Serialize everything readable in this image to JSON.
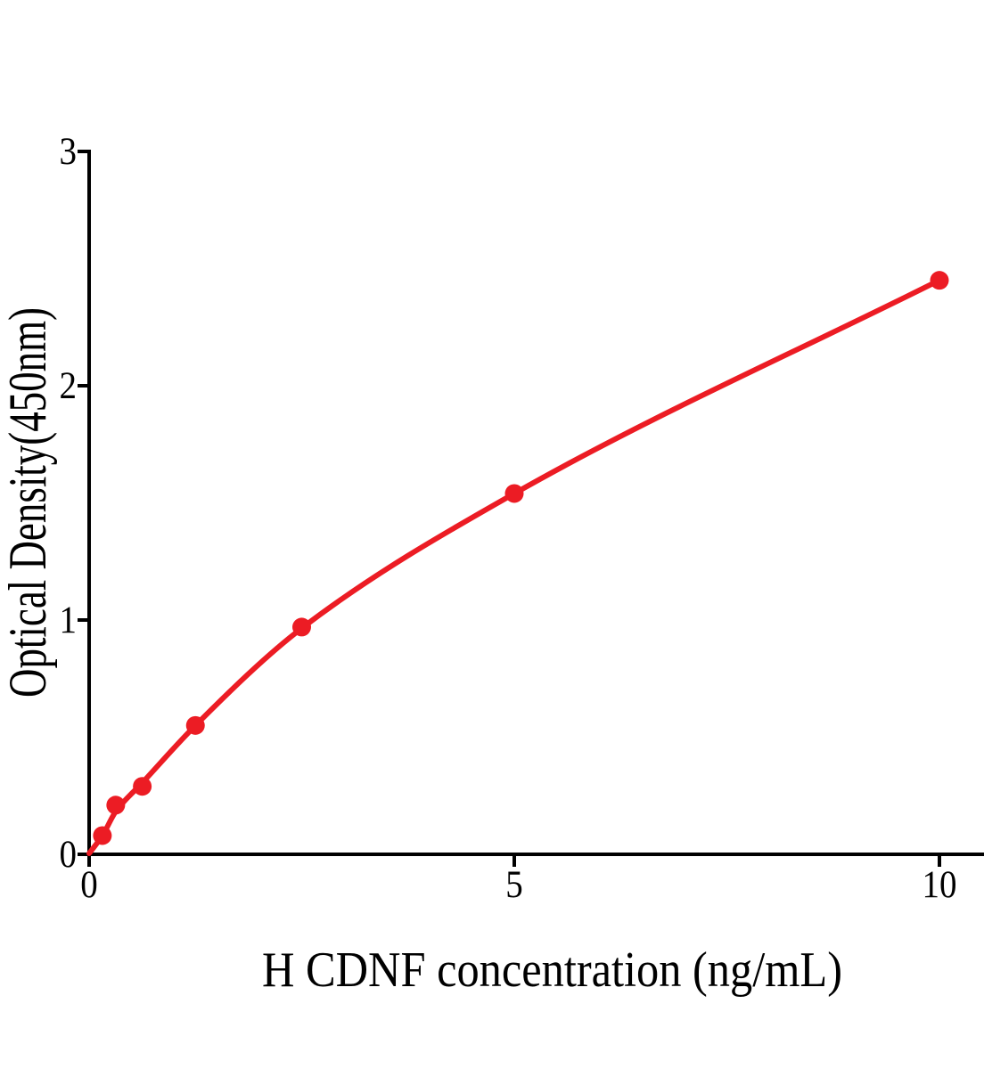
{
  "chart_data": {
    "type": "scatter",
    "title": "",
    "xlabel": "H CDNF concentration (ng/mL)",
    "ylabel": "Optical Density(450nm)",
    "xlim": [
      0,
      10
    ],
    "ylim": [
      0,
      3
    ],
    "x_ticks": [
      0,
      5,
      10
    ],
    "y_ticks": [
      0,
      1,
      2,
      3
    ],
    "grid": false,
    "legend": "none",
    "series_color": "#ec1c24",
    "axis_color": "#000000",
    "points": [
      {
        "x": 0.156,
        "y": 0.08
      },
      {
        "x": 0.313,
        "y": 0.21
      },
      {
        "x": 0.625,
        "y": 0.29
      },
      {
        "x": 1.25,
        "y": 0.55
      },
      {
        "x": 2.5,
        "y": 0.97
      },
      {
        "x": 5,
        "y": 1.54
      },
      {
        "x": 10,
        "y": 2.45
      }
    ],
    "fit_curve": [
      {
        "x": 0,
        "y": 0
      },
      {
        "x": 0.156,
        "y": 0.08
      },
      {
        "x": 0.313,
        "y": 0.183
      },
      {
        "x": 0.625,
        "y": 0.305
      },
      {
        "x": 1.25,
        "y": 0.55
      },
      {
        "x": 2.5,
        "y": 0.965
      },
      {
        "x": 5,
        "y": 1.54
      },
      {
        "x": 10,
        "y": 2.45
      }
    ]
  }
}
